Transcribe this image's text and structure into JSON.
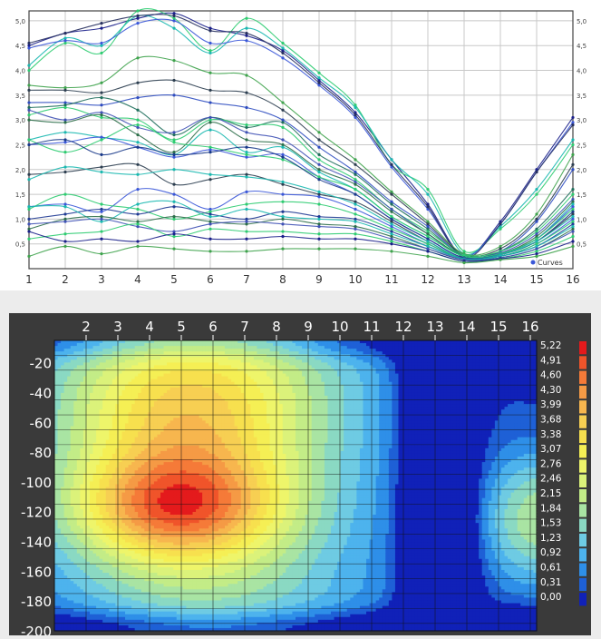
{
  "chart_data": [
    {
      "type": "line",
      "x": [
        1,
        2,
        3,
        4,
        5,
        6,
        7,
        8,
        9,
        10,
        11,
        12,
        13,
        14,
        15,
        16
      ],
      "ylim": [
        0,
        5.2
      ],
      "yticks": [
        {
          "v": 0.5,
          "label": "0,5"
        },
        {
          "v": 1.0,
          "label": "1,0"
        },
        {
          "v": 1.5,
          "label": "1,5"
        },
        {
          "v": 2.0,
          "label": "2,0"
        },
        {
          "v": 2.5,
          "label": "2,5"
        },
        {
          "v": 3.0,
          "label": "3,0"
        },
        {
          "v": 3.5,
          "label": "3,5"
        },
        {
          "v": 4.0,
          "label": "4,0"
        },
        {
          "v": 4.5,
          "label": "4,5"
        },
        {
          "v": 5.0,
          "label": "5,0"
        }
      ],
      "legend": {
        "label": "Curves",
        "placement": "bottom-right"
      },
      "grid": true,
      "series": [
        {
          "color": "#1a1f8a",
          "values": [
            4.5,
            4.75,
            4.85,
            5.05,
            5.15,
            4.85,
            4.7,
            4.4,
            3.8,
            3.15,
            2.2,
            1.3,
            0.25,
            0.95,
            2.0,
            3.05
          ]
        },
        {
          "color": "#2ecc71",
          "values": [
            4.0,
            4.55,
            4.35,
            5.2,
            5.05,
            4.4,
            5.05,
            4.55,
            3.95,
            3.3,
            2.1,
            1.6,
            0.35,
            0.8,
            1.5,
            2.5
          ]
        },
        {
          "color": "#1ab8b0",
          "values": [
            4.1,
            4.65,
            4.5,
            5.1,
            4.85,
            4.35,
            4.85,
            4.45,
            3.85,
            3.25,
            2.2,
            1.5,
            0.3,
            0.85,
            1.6,
            2.6
          ]
        },
        {
          "color": "#3a57d8",
          "values": [
            4.45,
            4.6,
            4.55,
            4.95,
            5.0,
            4.55,
            4.6,
            4.25,
            3.7,
            3.05,
            2.05,
            1.2,
            0.25,
            0.9,
            1.95,
            2.95
          ]
        },
        {
          "color": "#27305f",
          "values": [
            4.55,
            4.75,
            4.95,
            5.1,
            5.1,
            4.8,
            4.75,
            4.35,
            3.75,
            3.1,
            2.1,
            1.25,
            0.22,
            0.9,
            1.95,
            2.9
          ]
        },
        {
          "color": "#3fa34d",
          "values": [
            3.7,
            3.65,
            3.75,
            4.25,
            4.2,
            3.95,
            3.9,
            3.35,
            2.75,
            2.2,
            1.55,
            0.95,
            0.3,
            0.45,
            1.1,
            2.3
          ]
        },
        {
          "color": "#2c3e50",
          "values": [
            3.6,
            3.6,
            3.55,
            3.75,
            3.8,
            3.6,
            3.55,
            3.2,
            2.6,
            2.1,
            1.5,
            0.9,
            0.28,
            0.4,
            1.0,
            2.1
          ]
        },
        {
          "color": "#2e4cc0",
          "values": [
            3.35,
            3.35,
            3.3,
            3.45,
            3.5,
            3.35,
            3.25,
            3.0,
            2.45,
            1.95,
            1.35,
            0.85,
            0.25,
            0.35,
            0.95,
            2.0
          ]
        },
        {
          "color": "#1f6f5c",
          "values": [
            3.25,
            3.3,
            3.45,
            3.2,
            2.7,
            3.05,
            2.85,
            2.95,
            2.3,
            1.9,
            1.3,
            0.8,
            0.25,
            0.35,
            0.8,
            1.6
          ]
        },
        {
          "color": "#2ecc71",
          "values": [
            3.1,
            3.25,
            3.05,
            3.0,
            2.6,
            3.0,
            2.9,
            2.85,
            2.2,
            1.8,
            1.2,
            0.75,
            0.28,
            0.35,
            0.75,
            1.5
          ]
        },
        {
          "color": "#3f51b5",
          "values": [
            3.2,
            3.0,
            3.15,
            2.85,
            2.75,
            3.05,
            2.75,
            2.6,
            2.1,
            1.75,
            1.2,
            0.7,
            0.25,
            0.32,
            0.7,
            1.4
          ]
        },
        {
          "color": "#2c6e49",
          "values": [
            3.0,
            2.95,
            3.1,
            2.7,
            2.35,
            2.95,
            2.6,
            2.5,
            2.0,
            1.7,
            1.15,
            0.7,
            0.25,
            0.3,
            0.65,
            1.35
          ]
        },
        {
          "color": "#1ab8b0",
          "values": [
            2.6,
            2.75,
            2.65,
            2.55,
            2.3,
            2.8,
            2.35,
            2.45,
            1.95,
            1.6,
            1.05,
            0.65,
            0.25,
            0.3,
            0.6,
            1.3
          ]
        },
        {
          "color": "#3a57d8",
          "values": [
            2.5,
            2.55,
            2.65,
            2.45,
            2.25,
            2.4,
            2.25,
            2.3,
            1.85,
            1.5,
            1.0,
            0.6,
            0.22,
            0.3,
            0.6,
            1.25
          ]
        },
        {
          "color": "#2ecc71",
          "values": [
            2.6,
            2.35,
            2.6,
            2.9,
            2.55,
            2.45,
            2.3,
            2.2,
            1.85,
            1.6,
            1.05,
            0.65,
            0.25,
            0.3,
            0.6,
            1.2
          ]
        },
        {
          "color": "#1a3a8a",
          "values": [
            2.5,
            2.6,
            2.3,
            2.45,
            2.3,
            2.35,
            2.45,
            2.25,
            1.8,
            1.5,
            1.0,
            0.6,
            0.22,
            0.28,
            0.55,
            1.15
          ]
        },
        {
          "color": "#2c3e50",
          "values": [
            1.9,
            1.95,
            2.05,
            2.1,
            1.7,
            1.8,
            1.9,
            1.7,
            1.5,
            1.35,
            0.95,
            0.55,
            0.2,
            0.28,
            0.55,
            1.1
          ]
        },
        {
          "color": "#1ab8b0",
          "values": [
            1.8,
            2.05,
            1.95,
            1.9,
            2.0,
            1.9,
            1.85,
            1.75,
            1.55,
            1.3,
            0.9,
            0.55,
            0.2,
            0.28,
            0.55,
            1.05
          ]
        },
        {
          "color": "#3a57d8",
          "values": [
            1.25,
            1.3,
            1.15,
            1.6,
            1.5,
            1.2,
            1.55,
            1.5,
            1.45,
            1.2,
            0.85,
            0.5,
            0.2,
            0.25,
            0.5,
            1.0
          ]
        },
        {
          "color": "#2ecc71",
          "values": [
            1.2,
            1.5,
            1.3,
            1.2,
            1.0,
            1.15,
            1.3,
            1.35,
            1.3,
            1.1,
            0.8,
            0.5,
            0.2,
            0.25,
            0.5,
            0.95
          ]
        },
        {
          "color": "#1f3a93",
          "values": [
            1.0,
            1.1,
            1.2,
            1.1,
            1.25,
            1.1,
            1.0,
            1.15,
            1.05,
            1.0,
            0.75,
            0.45,
            0.2,
            0.25,
            0.45,
            0.9
          ]
        },
        {
          "color": "#1ab8b0",
          "values": [
            1.25,
            1.25,
            0.95,
            1.3,
            1.35,
            1.05,
            1.2,
            1.05,
            1.0,
            0.95,
            0.7,
            0.45,
            0.2,
            0.25,
            0.45,
            0.85
          ]
        },
        {
          "color": "#2c6e49",
          "values": [
            0.8,
            1.0,
            1.05,
            0.95,
            1.05,
            0.95,
            0.9,
            1.0,
            0.9,
            0.85,
            0.65,
            0.4,
            0.18,
            0.22,
            0.4,
            0.8
          ]
        },
        {
          "color": "#3f51b5",
          "values": [
            0.9,
            0.95,
            1.0,
            0.85,
            0.75,
            0.9,
            0.95,
            0.9,
            0.85,
            0.8,
            0.6,
            0.4,
            0.18,
            0.22,
            0.4,
            0.75
          ]
        },
        {
          "color": "#2ecc71",
          "values": [
            0.6,
            0.7,
            0.75,
            0.9,
            0.65,
            0.8,
            0.75,
            0.75,
            0.7,
            0.7,
            0.55,
            0.35,
            0.15,
            0.2,
            0.35,
            0.65
          ]
        },
        {
          "color": "#1a1f8a",
          "values": [
            0.75,
            0.55,
            0.6,
            0.55,
            0.7,
            0.6,
            0.6,
            0.65,
            0.6,
            0.6,
            0.5,
            0.35,
            0.15,
            0.2,
            0.3,
            0.55
          ]
        },
        {
          "color": "#3fa34d",
          "values": [
            0.25,
            0.45,
            0.3,
            0.45,
            0.4,
            0.35,
            0.35,
            0.4,
            0.4,
            0.4,
            0.35,
            0.25,
            0.12,
            0.18,
            0.25,
            0.45
          ]
        }
      ]
    },
    {
      "type": "heatmap",
      "xticks": [
        "2",
        "3",
        "4",
        "5",
        "6",
        "7",
        "8",
        "9",
        "10",
        "11",
        "12",
        "13",
        "14",
        "15",
        "16"
      ],
      "yticks": [
        "-20",
        "-40",
        "-60",
        "-80",
        "-100",
        "-120",
        "-140",
        "-160",
        "-180",
        "-200"
      ],
      "colorbar": {
        "labels": [
          "5,22",
          "4,91",
          "4,60",
          "4,30",
          "3,99",
          "3,68",
          "3,38",
          "3,07",
          "2,76",
          "2,46",
          "2,15",
          "1,84",
          "1,53",
          "1,23",
          "0,92",
          "0,61",
          "0,31",
          "0,00"
        ],
        "colors": [
          "#e41a1c",
          "#f0542a",
          "#f57a38",
          "#f59a45",
          "#f7b64e",
          "#f7cf52",
          "#f7e04e",
          "#f5ef54",
          "#eef56a",
          "#dbf27a",
          "#c3ec87",
          "#a9e4a3",
          "#8ad9c3",
          "#6ecbe3",
          "#4db3ed",
          "#2e8fe8",
          "#1e60d6",
          "#1021b8"
        ]
      }
    }
  ]
}
